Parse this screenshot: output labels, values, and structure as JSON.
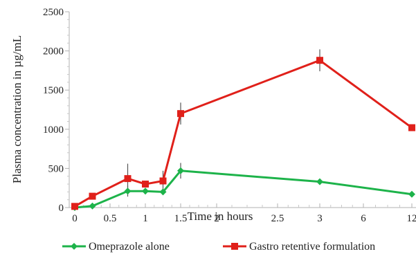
{
  "chart_data": {
    "type": "line",
    "title": "",
    "xlabel": "Time in hours",
    "ylabel": "Plasma concentration in µg/mL",
    "x_tick_labels": [
      "0",
      "0.5",
      "1",
      "1.5",
      "2",
      "2.5",
      "3",
      "6",
      "12"
    ],
    "y_ticks": [
      0,
      500,
      1000,
      1500,
      2000,
      2500
    ],
    "ylim": [
      0,
      2500
    ],
    "x_scale": "categorical-uneven",
    "grid": false,
    "legend_position": "bottom",
    "x": [
      0,
      0.25,
      0.75,
      1,
      1.25,
      1.5,
      3,
      12
    ],
    "series": [
      {
        "name": "Omeprazole alone",
        "color": "#1db34a",
        "marker": "diamond",
        "values": [
          0,
          20,
          210,
          210,
          200,
          470,
          330,
          170
        ],
        "error": [
          0,
          0,
          70,
          40,
          40,
          100,
          0,
          0
        ]
      },
      {
        "name": "Gastro retentive formulation",
        "color": "#e0201a",
        "marker": "square",
        "values": [
          15,
          145,
          370,
          300,
          340,
          1200,
          1880,
          1020
        ],
        "error": [
          0,
          0,
          190,
          40,
          130,
          140,
          140,
          0
        ]
      }
    ]
  }
}
